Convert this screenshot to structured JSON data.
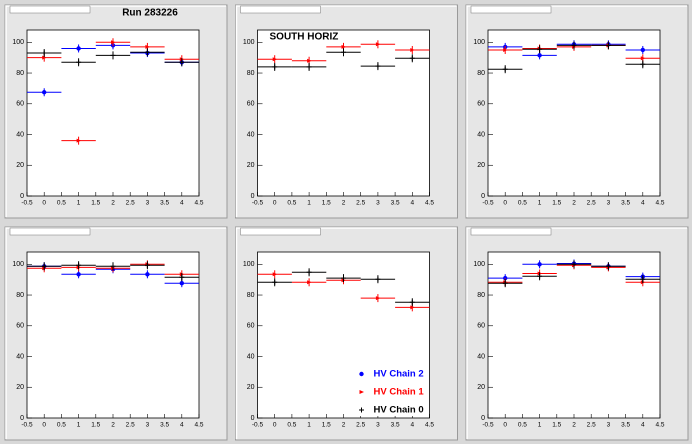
{
  "chart_data": [
    {
      "type": "scatter",
      "title": "Run 283226",
      "x": [
        0,
        1,
        2,
        3,
        4
      ],
      "xlim": [
        -0.5,
        4.5
      ],
      "ylim": [
        0,
        108
      ],
      "xticks": [
        -0.5,
        0,
        0.5,
        1,
        1.5,
        2,
        2.5,
        3,
        3.5,
        4,
        4.5
      ],
      "yticks": [
        0,
        20,
        40,
        60,
        80,
        100
      ],
      "series": [
        {
          "color": "#0000ff",
          "values": [
            67.5,
            96,
            98,
            93,
            87
          ]
        },
        {
          "color": "#ff0000",
          "values": [
            90,
            36,
            100,
            97,
            89
          ]
        },
        {
          "color": "#000000",
          "values": [
            93,
            87,
            91.5,
            93.5,
            87
          ]
        }
      ]
    },
    {
      "type": "scatter",
      "annotation": "SOUTH HORIZ",
      "x": [
        0,
        1,
        2,
        3,
        4
      ],
      "xlim": [
        -0.5,
        4.5
      ],
      "ylim": [
        0,
        108
      ],
      "xticks": [
        -0.5,
        0,
        0.5,
        1,
        1.5,
        2,
        2.5,
        3,
        3.5,
        4,
        4.5
      ],
      "yticks": [
        0,
        20,
        40,
        60,
        80,
        100
      ],
      "series": [
        {
          "color": "#ff0000",
          "values": [
            89,
            88,
            97,
            98.7,
            95
          ]
        },
        {
          "color": "#000000",
          "values": [
            84,
            84,
            93.5,
            84.5,
            89.6
          ]
        }
      ]
    },
    {
      "type": "scatter",
      "x": [
        0,
        1,
        2,
        3,
        4
      ],
      "xlim": [
        -0.5,
        4.5
      ],
      "ylim": [
        0,
        108
      ],
      "xticks": [
        -0.5,
        0,
        0.5,
        1,
        1.5,
        2,
        2.5,
        3,
        3.5,
        4,
        4.5
      ],
      "yticks": [
        0,
        20,
        40,
        60,
        80,
        100
      ],
      "series": [
        {
          "color": "#0000ff",
          "values": [
            97,
            91.5,
            98.7,
            98.7,
            95
          ]
        },
        {
          "color": "#ff0000",
          "values": [
            95,
            96,
            97,
            98,
            89.6
          ]
        },
        {
          "color": "#000000",
          "values": [
            82.5,
            95.5,
            98,
            98,
            85.7
          ]
        }
      ]
    },
    {
      "type": "scatter",
      "x": [
        0,
        1,
        2,
        3,
        4
      ],
      "xlim": [
        -0.5,
        4.5
      ],
      "ylim": [
        0,
        108
      ],
      "xticks": [
        -0.5,
        0,
        0.5,
        1,
        1.5,
        2,
        2.5,
        3,
        3.5,
        4,
        4.5
      ],
      "yticks": [
        0,
        20,
        40,
        60,
        80,
        100
      ],
      "series": [
        {
          "color": "#0000ff",
          "values": [
            98.7,
            93.5,
            96.8,
            93.5,
            87.7
          ]
        },
        {
          "color": "#ff0000",
          "values": [
            97.4,
            98,
            97.4,
            100,
            93.5
          ]
        },
        {
          "color": "#000000",
          "values": [
            98.7,
            99.4,
            98.7,
            99.4,
            91.6
          ]
        }
      ]
    },
    {
      "type": "scatter",
      "x": [
        0,
        1,
        2,
        3,
        4
      ],
      "xlim": [
        -0.5,
        4.5
      ],
      "ylim": [
        0,
        108
      ],
      "xticks": [
        -0.5,
        0,
        0.5,
        1,
        1.5,
        2,
        2.5,
        3,
        3.5,
        4,
        4.5
      ],
      "yticks": [
        0,
        20,
        40,
        60,
        80,
        100
      ],
      "legend": "lower right",
      "series": [
        {
          "name": "HV Chain 2",
          "color": "#0000ff",
          "values": [
            null,
            null,
            null,
            null,
            null
          ]
        },
        {
          "name": "HV Chain 1",
          "color": "#ff0000",
          "values": [
            93.5,
            88.3,
            89.6,
            78,
            72
          ]
        },
        {
          "name": "HV Chain 0",
          "color": "#000000",
          "values": [
            88.3,
            94.8,
            91,
            90.3,
            75.3
          ]
        }
      ]
    },
    {
      "type": "scatter",
      "x": [
        0,
        1,
        2,
        3,
        4
      ],
      "xlim": [
        -0.5,
        4.5
      ],
      "ylim": [
        0,
        108
      ],
      "xticks": [
        -0.5,
        0,
        0.5,
        1,
        1.5,
        2,
        2.5,
        3,
        3.5,
        4,
        4.5
      ],
      "yticks": [
        0,
        20,
        40,
        60,
        80,
        100
      ],
      "series": [
        {
          "color": "#0000ff",
          "values": [
            91,
            100,
            100.5,
            98.7,
            92
          ]
        },
        {
          "color": "#ff0000",
          "values": [
            88.3,
            94,
            99.4,
            98,
            88.3
          ]
        },
        {
          "color": "#000000",
          "values": [
            87.7,
            92.2,
            100,
            98.7,
            90.3
          ]
        }
      ]
    }
  ]
}
